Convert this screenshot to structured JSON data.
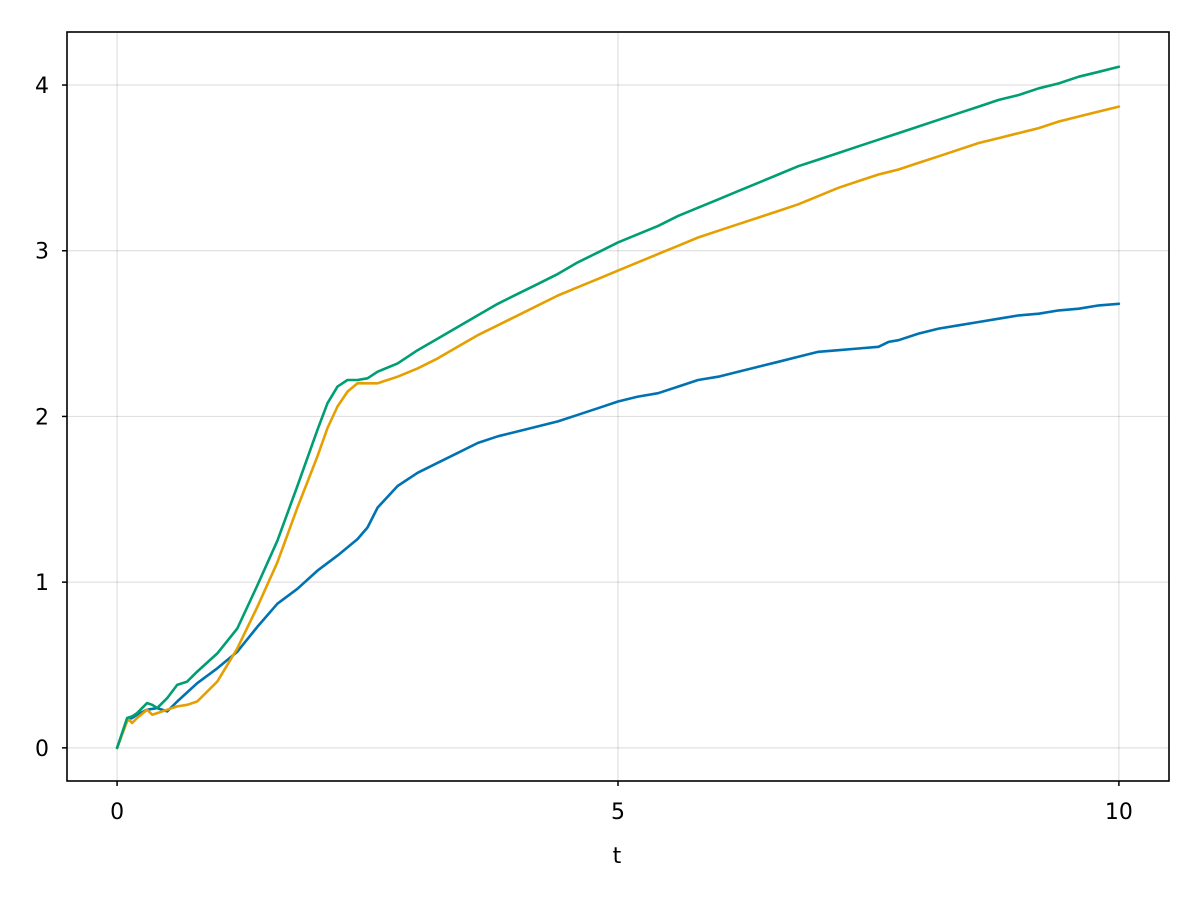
{
  "chart_data": {
    "type": "line",
    "title": "",
    "xlabel": "t",
    "ylabel": "",
    "xlim": [
      -0.5,
      10.5
    ],
    "ylim": [
      -0.2,
      4.32
    ],
    "xticks": [
      0,
      5,
      10
    ],
    "xtick_labels": [
      "0",
      "5",
      "10"
    ],
    "yticks": [
      0,
      1,
      2,
      3,
      4
    ],
    "ytick_labels": [
      "0",
      "1",
      "2",
      "3",
      "4"
    ],
    "grid": true,
    "legend": "none",
    "series": [
      {
        "color": "#0072b2",
        "x": [
          0,
          0.1,
          0.15,
          0.2,
          0.3,
          0.4,
          0.5,
          0.6,
          0.8,
          1.0,
          1.2,
          1.4,
          1.6,
          1.8,
          2.0,
          2.2,
          2.4,
          2.5,
          2.6,
          2.8,
          3.0,
          3.2,
          3.4,
          3.6,
          3.8,
          4.0,
          4.2,
          4.4,
          4.6,
          4.8,
          5.0,
          5.2,
          5.4,
          5.6,
          5.8,
          6.0,
          6.2,
          6.4,
          6.6,
          6.8,
          7.0,
          7.2,
          7.4,
          7.6,
          7.7,
          7.8,
          8.0,
          8.2,
          8.4,
          8.6,
          8.8,
          9.0,
          9.2,
          9.4,
          9.6,
          9.8,
          10.0
        ],
        "y": [
          0,
          0.17,
          0.18,
          0.2,
          0.23,
          0.24,
          0.22,
          0.28,
          0.39,
          0.48,
          0.58,
          0.73,
          0.87,
          0.96,
          1.07,
          1.16,
          1.26,
          1.33,
          1.45,
          1.58,
          1.66,
          1.72,
          1.78,
          1.84,
          1.88,
          1.91,
          1.94,
          1.97,
          2.01,
          2.05,
          2.09,
          2.12,
          2.14,
          2.18,
          2.22,
          2.24,
          2.27,
          2.3,
          2.33,
          2.36,
          2.39,
          2.4,
          2.41,
          2.42,
          2.45,
          2.46,
          2.5,
          2.53,
          2.55,
          2.57,
          2.59,
          2.61,
          2.62,
          2.64,
          2.65,
          2.67,
          2.68
        ]
      },
      {
        "color": "#e69f00",
        "x": [
          0,
          0.1,
          0.12,
          0.15,
          0.2,
          0.3,
          0.35,
          0.4,
          0.5,
          0.6,
          0.7,
          0.8,
          1.0,
          1.2,
          1.4,
          1.6,
          1.8,
          2.0,
          2.1,
          2.2,
          2.3,
          2.4,
          2.5,
          2.6,
          2.8,
          3.0,
          3.2,
          3.4,
          3.6,
          3.8,
          4.0,
          4.2,
          4.4,
          4.6,
          4.8,
          5.0,
          5.2,
          5.4,
          5.6,
          5.8,
          6.0,
          6.2,
          6.4,
          6.6,
          6.8,
          7.0,
          7.2,
          7.4,
          7.6,
          7.8,
          8.0,
          8.2,
          8.4,
          8.6,
          8.8,
          9.0,
          9.2,
          9.4,
          9.6,
          9.8,
          10.0
        ],
        "y": [
          0,
          0.16,
          0.17,
          0.15,
          0.18,
          0.23,
          0.2,
          0.21,
          0.23,
          0.25,
          0.26,
          0.28,
          0.4,
          0.6,
          0.85,
          1.12,
          1.45,
          1.76,
          1.93,
          2.06,
          2.15,
          2.2,
          2.2,
          2.2,
          2.24,
          2.29,
          2.35,
          2.42,
          2.49,
          2.55,
          2.61,
          2.67,
          2.73,
          2.78,
          2.83,
          2.88,
          2.93,
          2.98,
          3.03,
          3.08,
          3.12,
          3.16,
          3.2,
          3.24,
          3.28,
          3.33,
          3.38,
          3.42,
          3.46,
          3.49,
          3.53,
          3.57,
          3.61,
          3.65,
          3.68,
          3.71,
          3.74,
          3.78,
          3.81,
          3.84,
          3.87
        ]
      },
      {
        "color": "#009e73",
        "x": [
          0,
          0.1,
          0.15,
          0.2,
          0.25,
          0.3,
          0.35,
          0.4,
          0.5,
          0.6,
          0.7,
          0.8,
          1.0,
          1.2,
          1.4,
          1.6,
          1.8,
          2.0,
          2.1,
          2.2,
          2.3,
          2.4,
          2.5,
          2.6,
          2.8,
          3.0,
          3.2,
          3.4,
          3.6,
          3.8,
          4.0,
          4.2,
          4.4,
          4.6,
          4.8,
          5.0,
          5.2,
          5.4,
          5.6,
          5.8,
          6.0,
          6.2,
          6.4,
          6.6,
          6.8,
          7.0,
          7.2,
          7.4,
          7.6,
          7.8,
          8.0,
          8.2,
          8.4,
          8.6,
          8.8,
          9.0,
          9.2,
          9.4,
          9.6,
          9.8,
          10.0
        ],
        "y": [
          0,
          0.18,
          0.19,
          0.21,
          0.24,
          0.27,
          0.26,
          0.24,
          0.3,
          0.38,
          0.4,
          0.46,
          0.57,
          0.72,
          0.98,
          1.25,
          1.58,
          1.92,
          2.08,
          2.18,
          2.22,
          2.22,
          2.23,
          2.27,
          2.32,
          2.4,
          2.47,
          2.54,
          2.61,
          2.68,
          2.74,
          2.8,
          2.86,
          2.93,
          2.99,
          3.05,
          3.1,
          3.15,
          3.21,
          3.26,
          3.31,
          3.36,
          3.41,
          3.46,
          3.51,
          3.55,
          3.59,
          3.63,
          3.67,
          3.71,
          3.75,
          3.79,
          3.83,
          3.87,
          3.91,
          3.94,
          3.98,
          4.01,
          4.05,
          4.08,
          4.11
        ]
      }
    ]
  }
}
